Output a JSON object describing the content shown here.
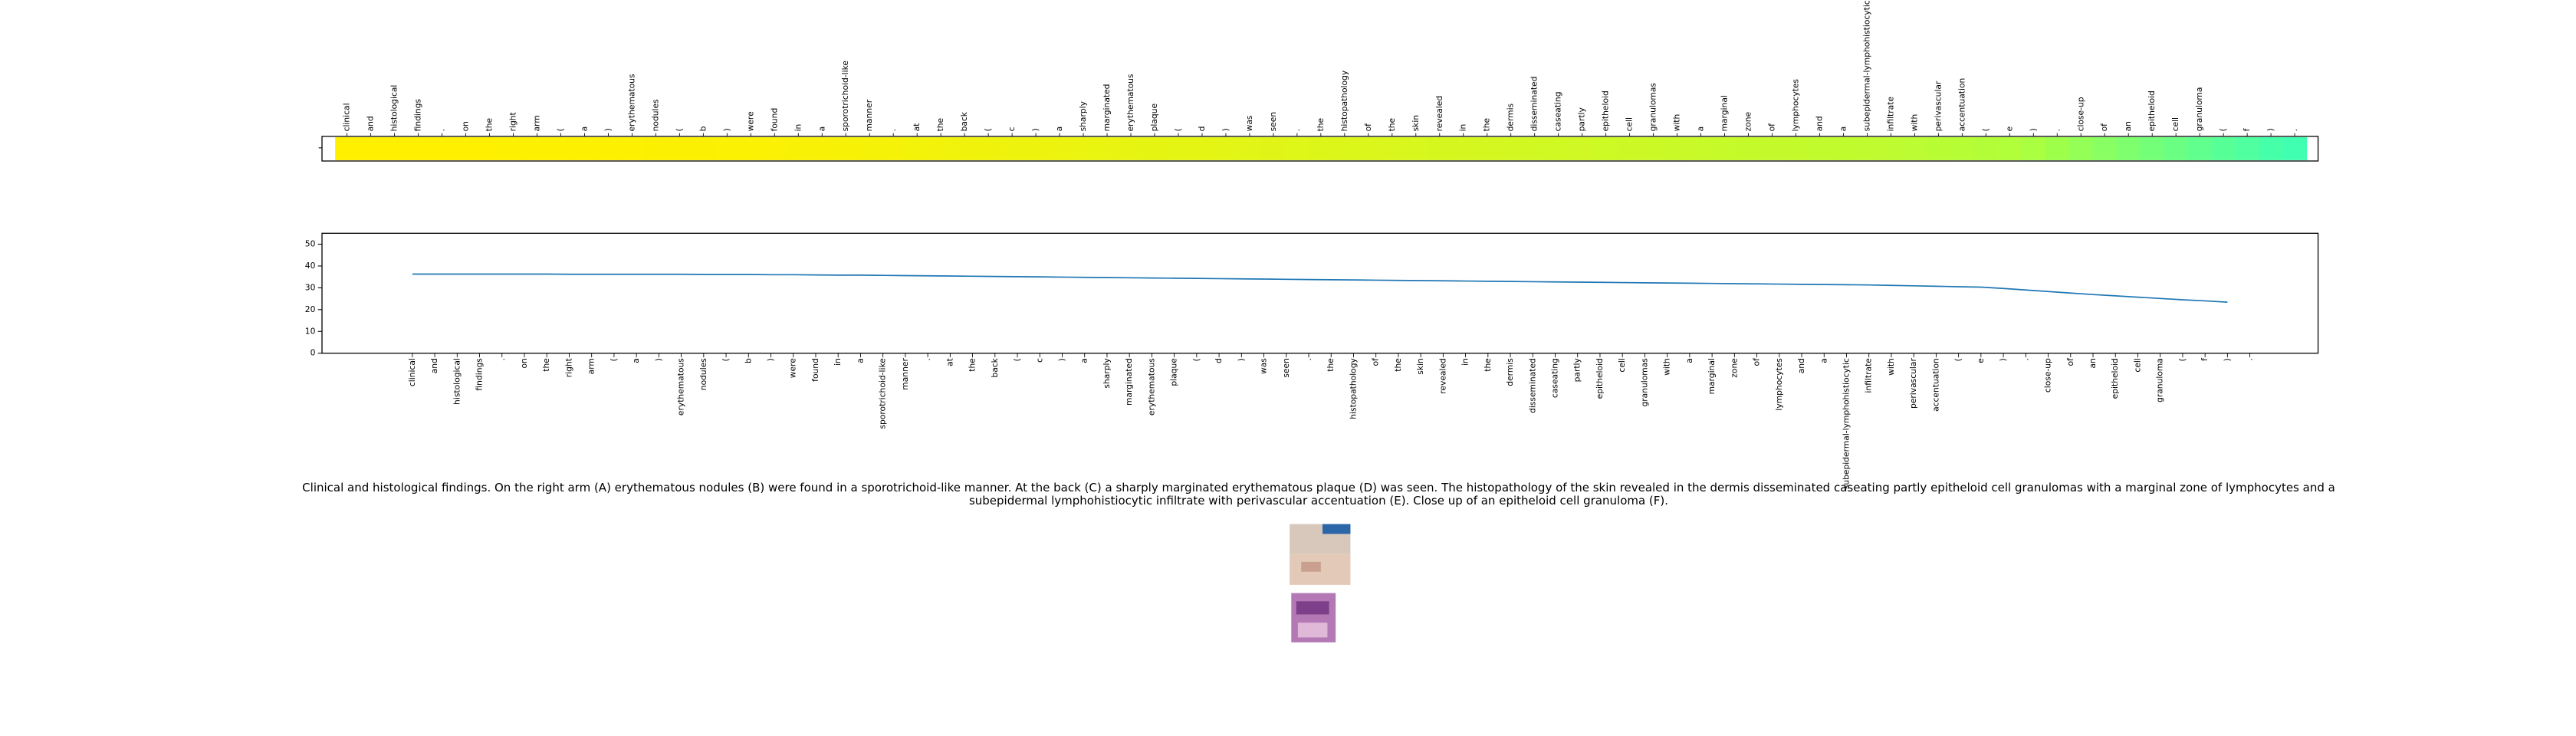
{
  "chart_data": [
    {
      "type": "heatmap",
      "categories": [
        "clinical",
        "and",
        "histological",
        "findings",
        ".",
        "on",
        "the",
        "right",
        "arm",
        "(",
        "a",
        ")",
        "erythematous",
        "nodules",
        "(",
        "b",
        ")",
        "were",
        "found",
        "in",
        "a",
        "sporotrichoid-like",
        "manner",
        ".",
        "at",
        "the",
        "back",
        "(",
        "c",
        ")",
        "a",
        "sharply",
        "marginated",
        "erythematous",
        "plaque",
        "(",
        "d",
        ")",
        "was",
        "seen",
        ".",
        "the",
        "histopathology",
        "of",
        "the",
        "skin",
        "revealed",
        "in",
        "the",
        "dermis",
        "disseminated",
        "caseating",
        "partly",
        "epitheloid",
        "cell",
        "granulomas",
        "with",
        "a",
        "marginal",
        "zone",
        "of",
        "lymphocytes",
        "and",
        "a",
        "subepidermal-lymphohistiocytic",
        "infiltrate",
        "with",
        "perivascular",
        "accentuation",
        "(",
        "e",
        ")",
        ".",
        "close-up",
        "of",
        "an",
        "epitheloid",
        "cell",
        "granuloma",
        "(",
        "f",
        ")",
        "."
      ],
      "values": [
        36.3,
        36.3,
        36.3,
        36.3,
        36.3,
        36.3,
        36.3,
        36.2,
        36.2,
        36.2,
        36.2,
        36.2,
        36.2,
        36.1,
        36.1,
        36.1,
        36.0,
        36.0,
        35.9,
        35.8,
        35.8,
        35.7,
        35.6,
        35.5,
        35.4,
        35.3,
        35.2,
        35.1,
        35.0,
        34.9,
        34.8,
        34.7,
        34.6,
        34.5,
        34.4,
        34.3,
        34.2,
        34.1,
        34.0,
        33.9,
        33.8,
        33.7,
        33.6,
        33.5,
        33.4,
        33.3,
        33.2,
        33.1,
        33.0,
        32.9,
        32.8,
        32.7,
        32.6,
        32.5,
        32.4,
        32.3,
        32.2,
        32.1,
        32.0,
        31.9,
        31.8,
        31.7,
        31.6,
        31.5,
        31.4,
        31.3,
        31.1,
        30.9,
        30.7,
        30.5,
        30.3,
        29.7,
        29.0,
        28.3,
        27.6,
        26.9,
        26.3,
        25.7,
        25.1,
        24.5,
        24.0,
        23.4,
        23.0
      ],
      "colormap": [
        "#40ffb0",
        "#a8ff40",
        "#fff000"
      ],
      "clim": [
        23,
        36.3
      ]
    },
    {
      "type": "line",
      "categories": [
        "clinical",
        "and",
        "histological",
        "findings",
        ".",
        "on",
        "the",
        "right",
        "arm",
        "(",
        "a",
        ")",
        "erythematous",
        "nodules",
        "(",
        "b",
        ")",
        "were",
        "found",
        "in",
        "a",
        "sporotrichoid-like",
        "manner",
        ".",
        "at",
        "the",
        "back",
        "(",
        "c",
        ")",
        "a",
        "sharply",
        "marginated",
        "erythematous",
        "plaque",
        "(",
        "d",
        ")",
        "was",
        "seen",
        ".",
        "the",
        "histopathology",
        "of",
        "the",
        "skin",
        "revealed",
        "in",
        "the",
        "dermis",
        "disseminated",
        "caseating",
        "partly",
        "epitheloid",
        "cell",
        "granulomas",
        "with",
        "a",
        "marginal",
        "zone",
        "of",
        "lymphocytes",
        "and",
        "a",
        "subepidermal-lymphohistiocytic",
        "infiltrate",
        "with",
        "perivascular",
        "accentuation",
        "(",
        "e",
        ")",
        ".",
        "close-up",
        "of",
        "an",
        "epitheloid",
        "cell",
        "granuloma",
        "(",
        "f",
        ")",
        "."
      ],
      "series": [
        {
          "color": "#1f77b4",
          "values": [
            36.3,
            36.3,
            36.3,
            36.3,
            36.3,
            36.3,
            36.3,
            36.2,
            36.2,
            36.2,
            36.2,
            36.2,
            36.2,
            36.1,
            36.1,
            36.1,
            36.0,
            36.0,
            35.9,
            35.8,
            35.8,
            35.7,
            35.6,
            35.5,
            35.4,
            35.3,
            35.2,
            35.1,
            35.0,
            34.9,
            34.8,
            34.7,
            34.6,
            34.5,
            34.4,
            34.3,
            34.2,
            34.1,
            34.0,
            33.9,
            33.8,
            33.7,
            33.6,
            33.5,
            33.4,
            33.3,
            33.2,
            33.1,
            33.0,
            32.9,
            32.8,
            32.7,
            32.6,
            32.5,
            32.4,
            32.3,
            32.2,
            32.1,
            32.0,
            31.9,
            31.8,
            31.7,
            31.6,
            31.5,
            31.4,
            31.3,
            31.1,
            30.9,
            30.7,
            30.5,
            30.3,
            29.7,
            29.0,
            28.3,
            27.6,
            26.9,
            26.3,
            25.7,
            25.1,
            24.5,
            24.0,
            23.4,
            null
          ]
        }
      ],
      "ylim": [
        0,
        55
      ],
      "yticks": [
        0,
        10,
        20,
        30,
        40,
        50
      ]
    }
  ],
  "caption": "Clinical and histological findings. On the right arm (A) erythematous nodules (B) were found in a sporotrichoid-like manner. At the back (C) a sharply marginated erythematous plaque (D) was seen. The histopathology of the skin revealed in the dermis disseminated caseating partly epitheloid cell granulomas with a marginal zone of lymphocytes and a subepidermal lymphohistiocytic infiltrate with perivascular accentuation (E). Close up of an epitheloid cell granuloma (F)."
}
